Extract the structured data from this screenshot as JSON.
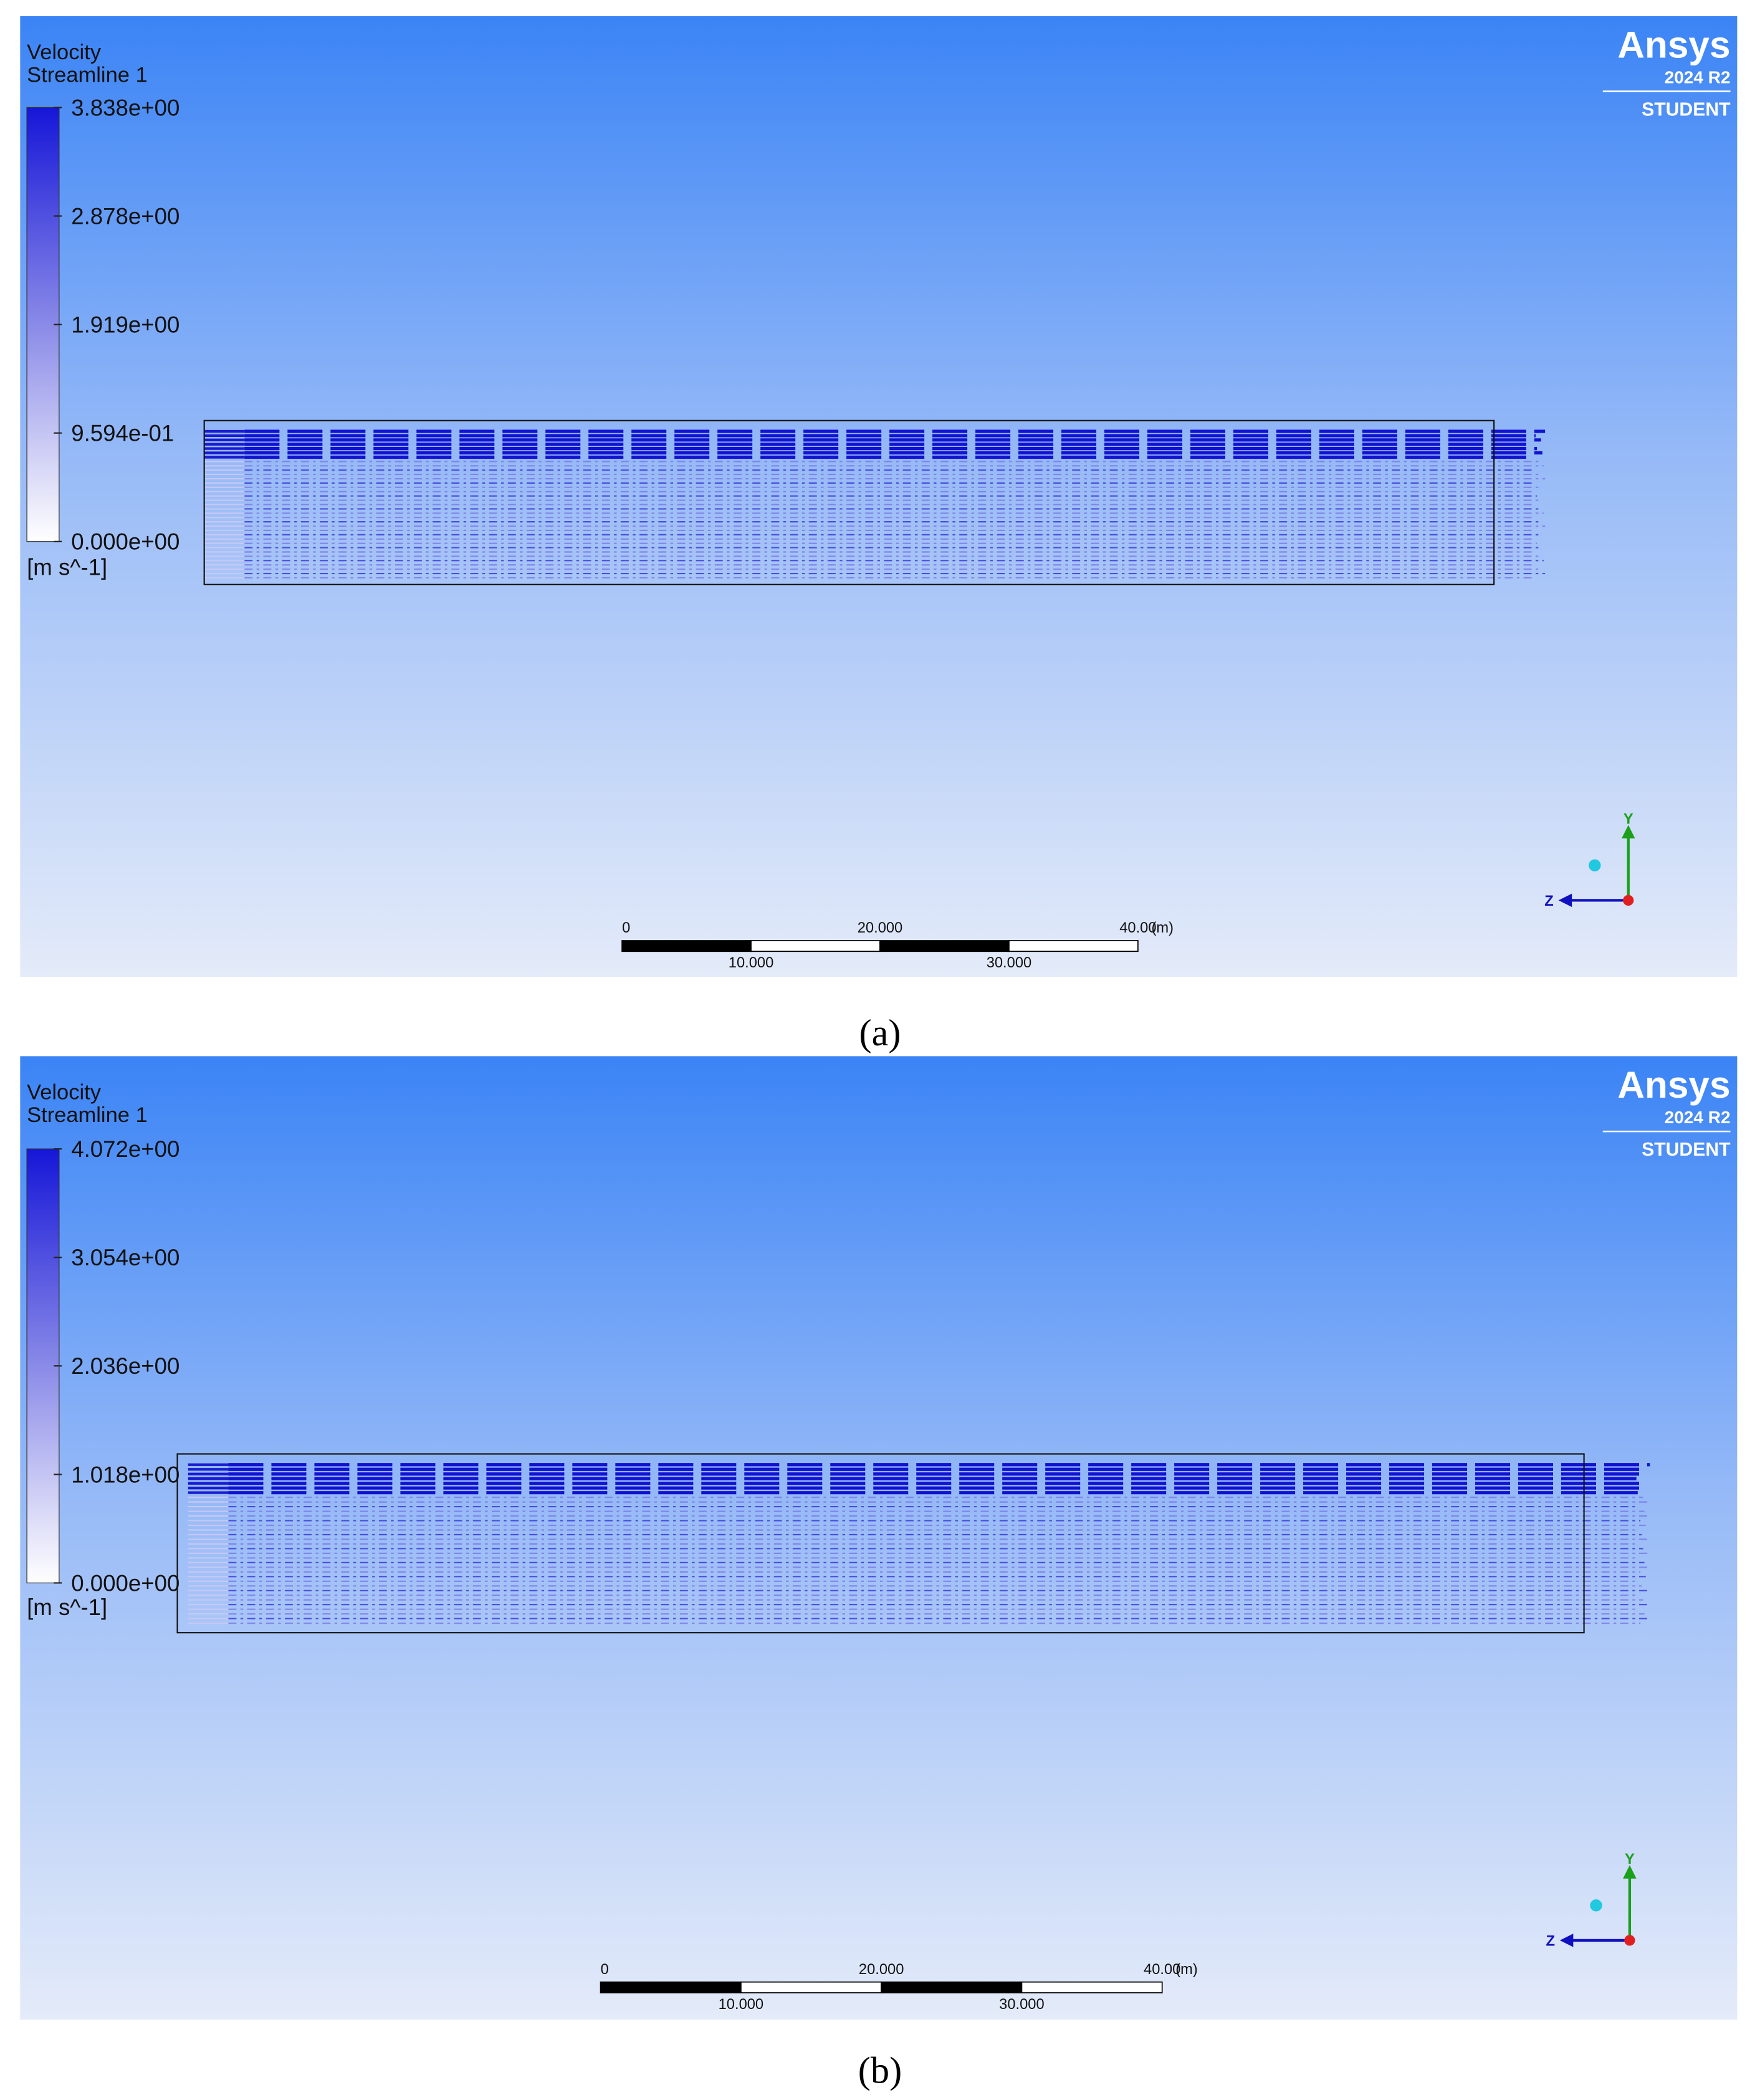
{
  "panels": [
    {
      "legend": {
        "title": "Velocity",
        "subtitle": "Streamline 1",
        "ticks": [
          "3.838e+00",
          "2.878e+00",
          "1.919e+00",
          "9.594e-01",
          "0.000e+00"
        ],
        "unit": "[m s^-1]"
      },
      "logo": {
        "brand": "Ansys",
        "version": "2024 R2",
        "edition": "STUDENT"
      },
      "triad": {
        "y": "Y",
        "z": "Z"
      },
      "scale_bar": {
        "top": [
          "0",
          "20.000",
          "40.00"
        ],
        "bottom": [
          "10.000",
          "30.000"
        ],
        "unit": "(m)"
      },
      "caption": "(a)"
    },
    {
      "legend": {
        "title": "Velocity",
        "subtitle": "Streamline 1",
        "ticks": [
          "4.072e+00",
          "3.054e+00",
          "2.036e+00",
          "1.018e+00",
          "0.000e+00"
        ],
        "unit": "[m s^-1]"
      },
      "logo": {
        "brand": "Ansys",
        "version": "2024 R2",
        "edition": "STUDENT"
      },
      "triad": {
        "y": "Y",
        "z": "Z"
      },
      "scale_bar": {
        "top": [
          "0",
          "20.000",
          "40.00"
        ],
        "bottom": [
          "10.000",
          "30.000"
        ],
        "unit": "(m)"
      },
      "caption": "(b)"
    }
  ]
}
